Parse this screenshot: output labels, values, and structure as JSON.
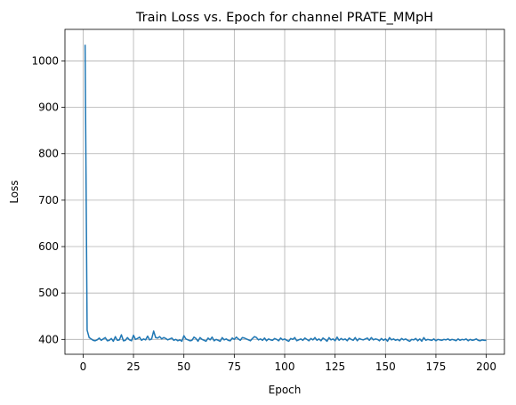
{
  "chart_data": {
    "type": "line",
    "title": "Train Loss vs. Epoch for channel PRATE_MMpH",
    "xlabel": "Epoch",
    "ylabel": "Loss",
    "xlim": [
      -9,
      209
    ],
    "ylim": [
      368,
      1068
    ],
    "xticks": [
      0,
      25,
      50,
      75,
      100,
      125,
      150,
      175,
      200
    ],
    "yticks": [
      400,
      500,
      600,
      700,
      800,
      900,
      1000
    ],
    "grid": true,
    "line_color": "#1f77b4",
    "series": [
      {
        "x": [
          1,
          2,
          3,
          4,
          5,
          6,
          7,
          8,
          9,
          10,
          11,
          12,
          13,
          14,
          15,
          16,
          17,
          18,
          19,
          20,
          21,
          22,
          23,
          24,
          25,
          26,
          27,
          28,
          29,
          30,
          31,
          32,
          33,
          34,
          35,
          36,
          37,
          38,
          39,
          40,
          41,
          42,
          43,
          44,
          45,
          46,
          47,
          48,
          49,
          50,
          51,
          52,
          53,
          54,
          55,
          56,
          57,
          58,
          59,
          60,
          61,
          62,
          63,
          64,
          65,
          66,
          67,
          68,
          69,
          70,
          71,
          72,
          73,
          74,
          75,
          76,
          77,
          78,
          79,
          80,
          81,
          82,
          83,
          84,
          85,
          86,
          87,
          88,
          89,
          90,
          91,
          92,
          93,
          94,
          95,
          96,
          97,
          98,
          99,
          100,
          101,
          102,
          103,
          104,
          105,
          106,
          107,
          108,
          109,
          110,
          111,
          112,
          113,
          114,
          115,
          116,
          117,
          118,
          119,
          120,
          121,
          122,
          123,
          124,
          125,
          126,
          127,
          128,
          129,
          130,
          131,
          132,
          133,
          134,
          135,
          136,
          137,
          138,
          139,
          140,
          141,
          142,
          143,
          144,
          145,
          146,
          147,
          148,
          149,
          150,
          151,
          152,
          153,
          154,
          155,
          156,
          157,
          158,
          159,
          160,
          161,
          162,
          163,
          164,
          165,
          166,
          167,
          168,
          169,
          170,
          171,
          172,
          173,
          174,
          175,
          176,
          177,
          178,
          179,
          180,
          181,
          182,
          183,
          184,
          185,
          186,
          187,
          188,
          189,
          190,
          191,
          192,
          193,
          194,
          195,
          196,
          197,
          198,
          199,
          200
        ],
        "values": [
          1035,
          420,
          404,
          401,
          398,
          397,
          399,
          403,
          398,
          401,
          404,
          397,
          398,
          402,
          396,
          406,
          398,
          399,
          410,
          397,
          398,
          404,
          399,
          397,
          409,
          400,
          402,
          405,
          398,
          401,
          399,
          407,
          399,
          401,
          418,
          404,
          403,
          406,
          401,
          404,
          402,
          399,
          401,
          403,
          398,
          400,
          397,
          399,
          396,
          408,
          401,
          399,
          397,
          398,
          405,
          402,
          396,
          404,
          400,
          398,
          396,
          403,
          399,
          405,
          397,
          400,
          398,
          396,
          404,
          399,
          401,
          398,
          397,
          403,
          400,
          405,
          401,
          398,
          404,
          403,
          401,
          399,
          397,
          402,
          406,
          404,
          399,
          401,
          398,
          403,
          397,
          401,
          399,
          398,
          402,
          400,
          397,
          403,
          399,
          401,
          398,
          396,
          402,
          400,
          404,
          397,
          399,
          401,
          398,
          403,
          400,
          397,
          402,
          399,
          404,
          398,
          401,
          397,
          403,
          400,
          396,
          404,
          399,
          401,
          397,
          405,
          398,
          402,
          399,
          401,
          397,
          403,
          400,
          398,
          404,
          397,
          402,
          400,
          399,
          401,
          403,
          398,
          404,
          399,
          401,
          400,
          397,
          402,
          398,
          401,
          396,
          404,
          399,
          401,
          398,
          400,
          397,
          402,
          399,
          401,
          398,
          396,
          400,
          399,
          402,
          397,
          401,
          396,
          404,
          398,
          400,
          399,
          398,
          401,
          397,
          400,
          399,
          398,
          400,
          399,
          401,
          398,
          400,
          399,
          397,
          401,
          398,
          400,
          399,
          401,
          397,
          400,
          398,
          399,
          401,
          398,
          397,
          399,
          398,
          398
        ]
      }
    ]
  }
}
